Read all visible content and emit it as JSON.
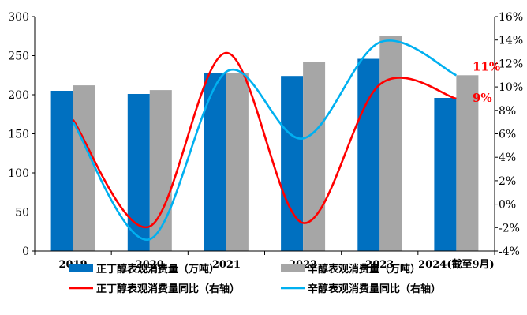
{
  "chart_data": {
    "type": "bar",
    "categories": [
      "2019",
      "2020",
      "2021",
      "2022",
      "2023",
      "2024(截至9月)"
    ],
    "series": [
      {
        "name": "正丁醇表观消费量（万吨）",
        "kind": "bar",
        "axis": "left",
        "color": "#0070c0",
        "values": [
          205,
          201,
          228,
          224,
          246,
          196
        ]
      },
      {
        "name": "辛醇表观消费量（万吨）",
        "kind": "bar",
        "axis": "left",
        "color": "#a6a6a6",
        "values": [
          212,
          206,
          228,
          242,
          275,
          225
        ]
      },
      {
        "name": "正丁醇表观消费量同比（右轴）",
        "kind": "line",
        "axis": "right",
        "color": "#ff0000",
        "values": [
          7.2,
          -1.9,
          12.9,
          -1.6,
          10.2,
          9.0
        ]
      },
      {
        "name": "辛醇表观消费量同比（右轴）",
        "kind": "line",
        "axis": "right",
        "color": "#00b0f0",
        "values": [
          7.0,
          -3.0,
          11.3,
          5.6,
          13.8,
          11.0
        ]
      }
    ],
    "left_axis": {
      "min": 0,
      "max": 300,
      "step": 50,
      "ticks": [
        "0",
        "50",
        "100",
        "150",
        "200",
        "250",
        "300"
      ]
    },
    "right_axis": {
      "min": -4,
      "max": 16,
      "step": 2,
      "ticks": [
        "-4%",
        "-2%",
        "0%",
        "2%",
        "4%",
        "6%",
        "8%",
        "10%",
        "12%",
        "14%",
        "16%"
      ]
    },
    "annotations": [
      {
        "text": "11%",
        "series": 3,
        "color": "#ff0000"
      },
      {
        "text": "9%",
        "series": 2,
        "color": "#ff0000"
      }
    ],
    "legend_position": "bottom",
    "grid": false
  }
}
